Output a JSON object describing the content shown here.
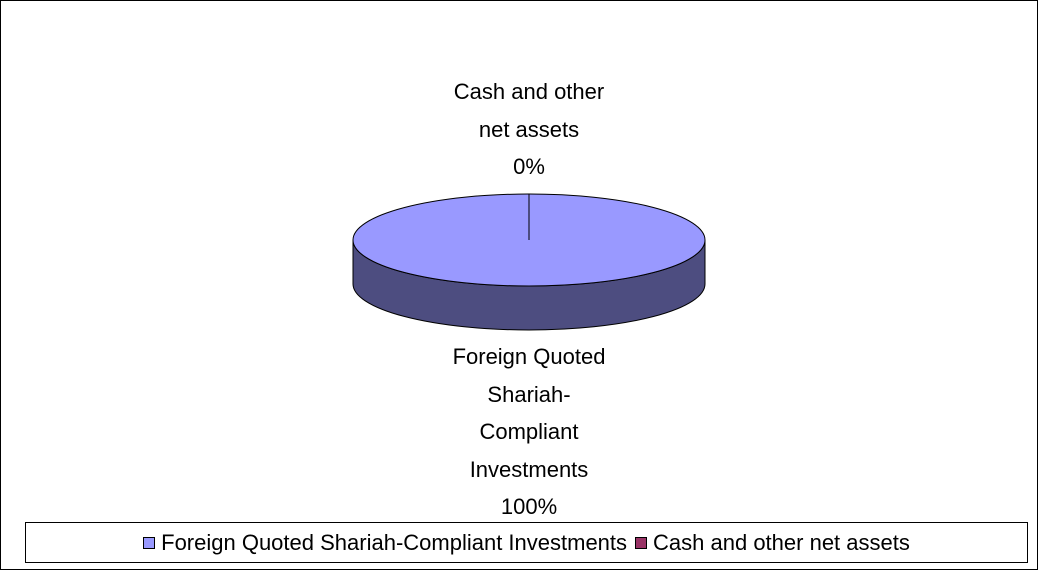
{
  "chart_data": {
    "type": "pie",
    "categories": [
      "Foreign Quoted Shariah-Compliant Investments",
      "Cash and other net assets"
    ],
    "values": [
      100,
      0
    ],
    "value_labels": [
      "100%",
      "0%"
    ],
    "colors": [
      "#9999ff",
      "#993366"
    ],
    "legend": "bottom"
  }
}
